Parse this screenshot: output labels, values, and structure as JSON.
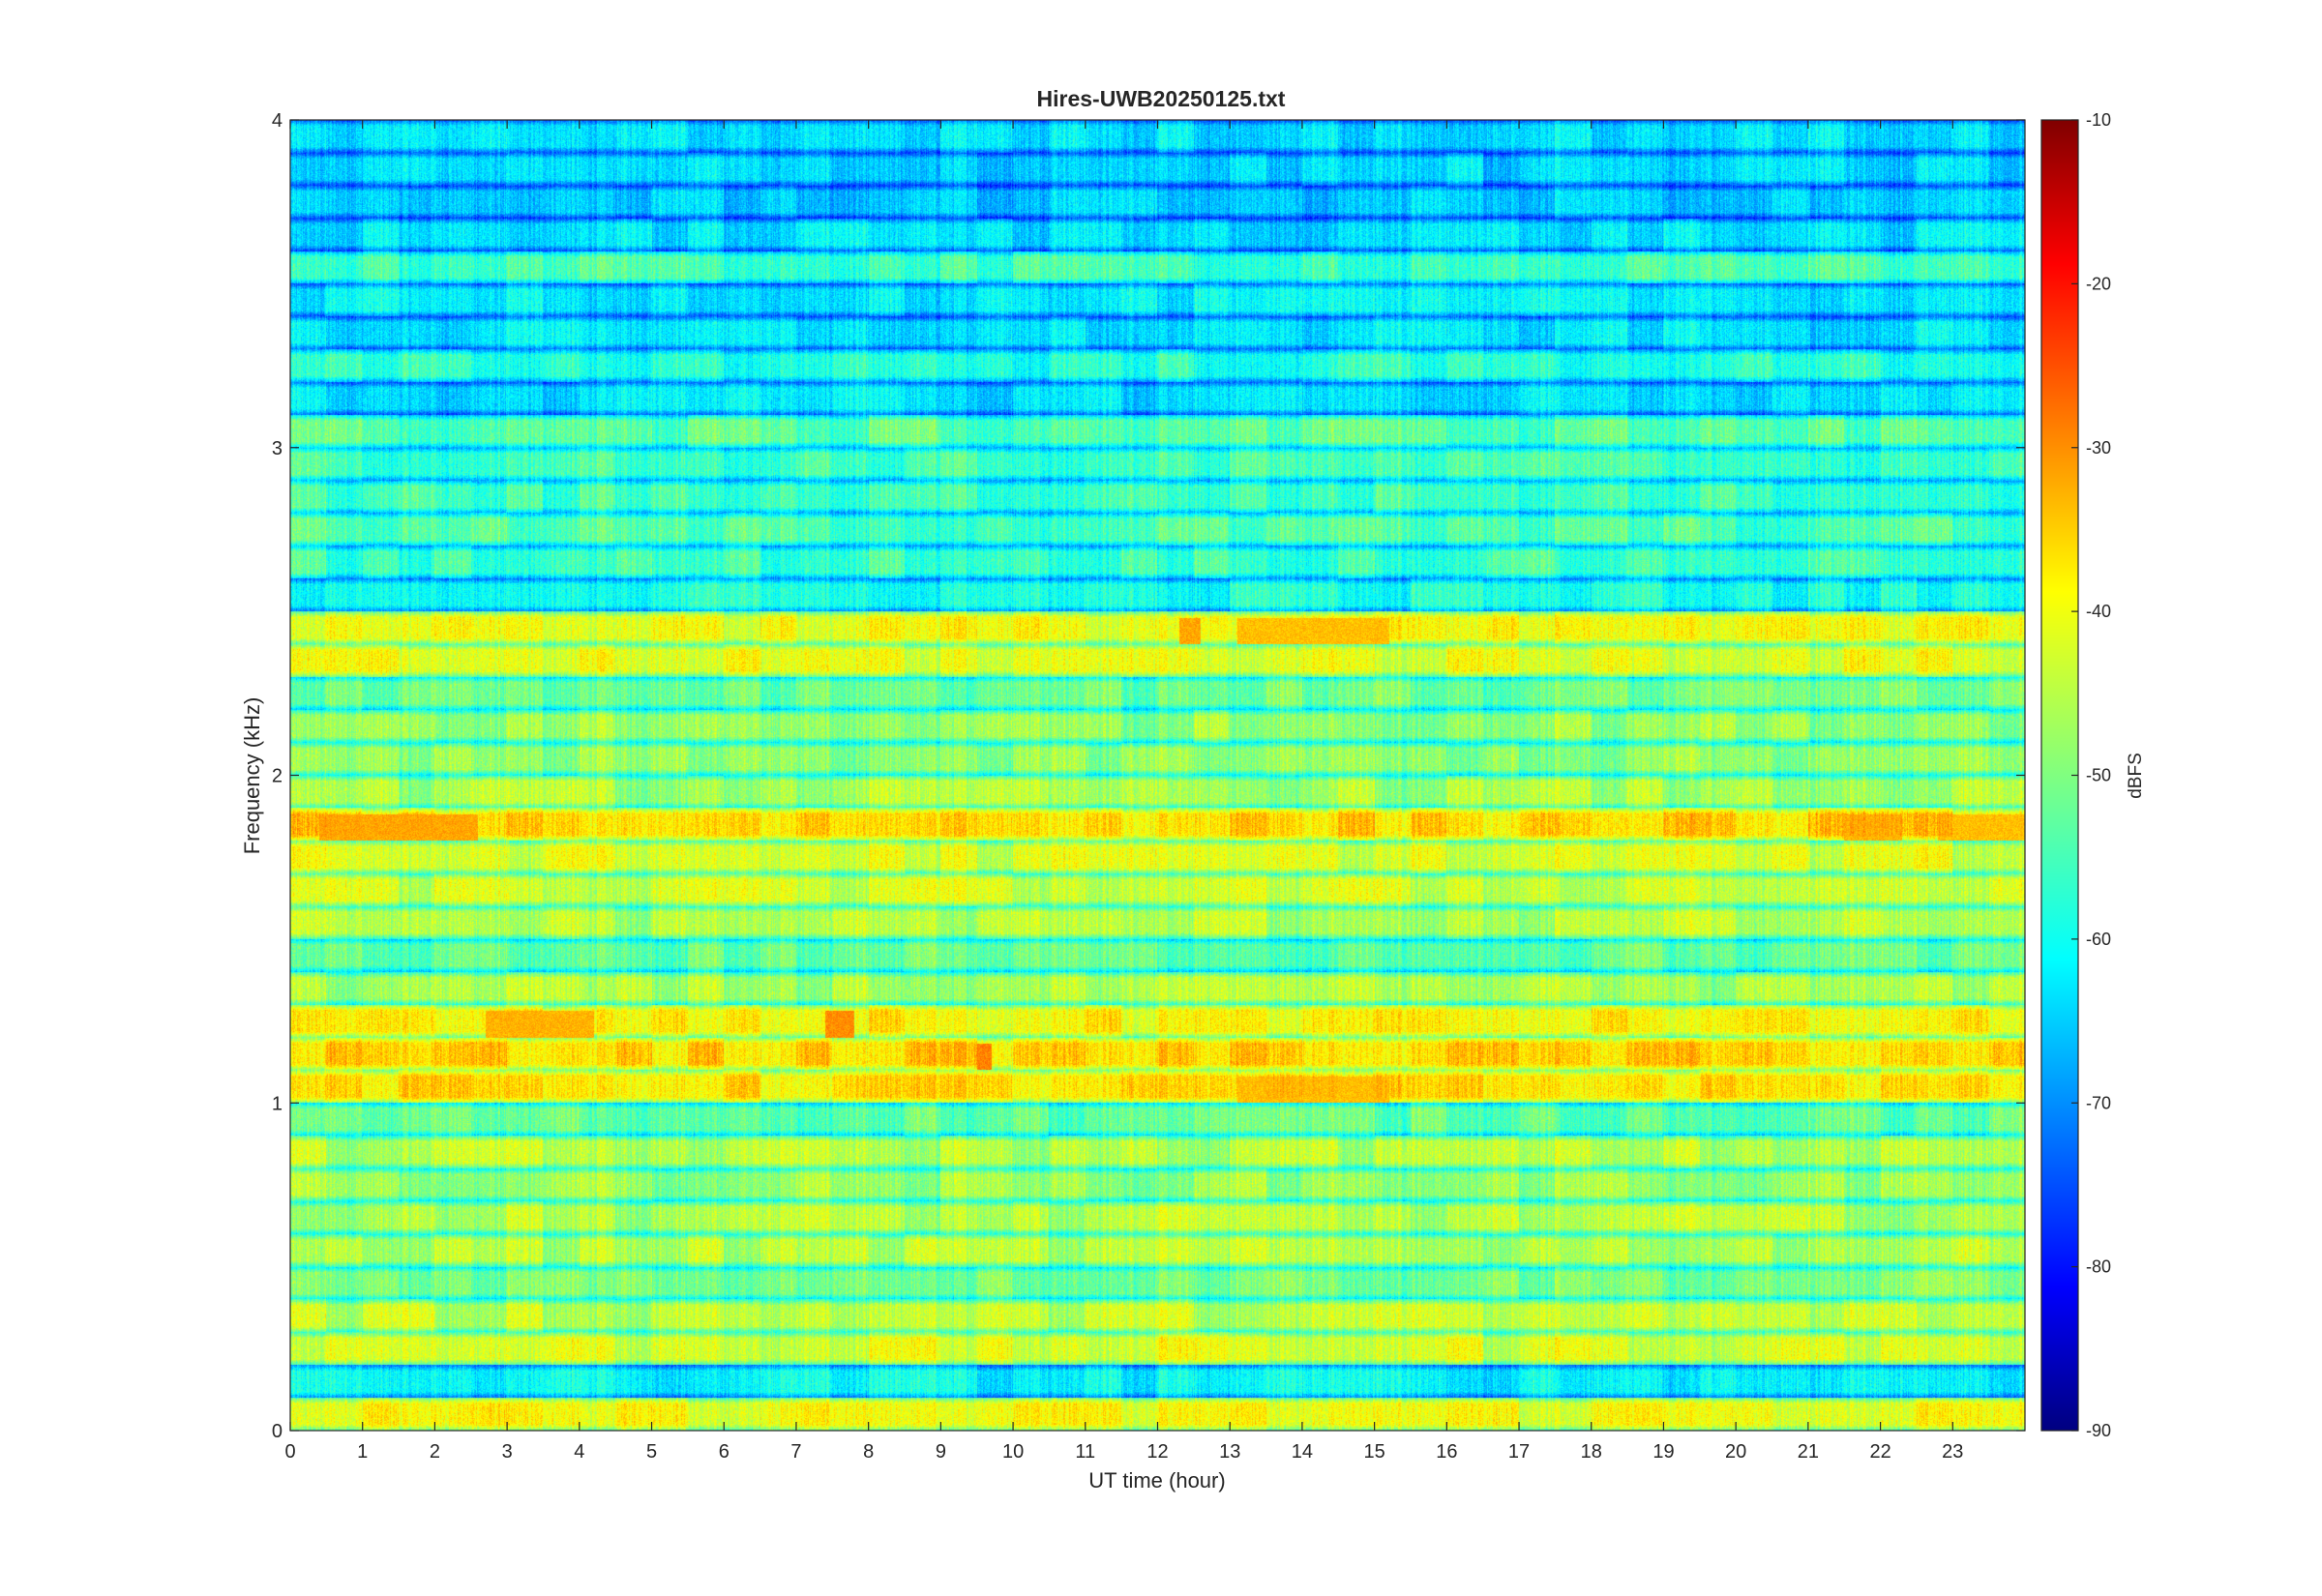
{
  "chart_data": {
    "type": "heatmap",
    "title": "Hires-UWB20250125.txt",
    "xlabel": "UT time (hour)",
    "ylabel": "Frequency (kHz)",
    "xlim": [
      0,
      24
    ],
    "ylim": [
      0,
      4
    ],
    "x_ticks": [
      "0",
      "1",
      "2",
      "3",
      "4",
      "5",
      "6",
      "7",
      "8",
      "9",
      "10",
      "11",
      "12",
      "13",
      "14",
      "15",
      "16",
      "17",
      "18",
      "19",
      "20",
      "21",
      "22",
      "23"
    ],
    "y_ticks": [
      "0",
      "1",
      "2",
      "3",
      "4"
    ],
    "colorbar": {
      "label": "dBFS",
      "range": [
        -90,
        -10
      ],
      "ticks": [
        "-10",
        "-20",
        "-30",
        "-40",
        "-50",
        "-60",
        "-70",
        "-80",
        "-90"
      ],
      "colormap": "jet"
    },
    "bands": [
      {
        "f": 0.04,
        "level": -41
      },
      {
        "f": 0.14,
        "level": -60
      },
      {
        "f": 0.24,
        "level": -43
      },
      {
        "f": 0.34,
        "level": -45
      },
      {
        "f": 0.44,
        "level": -50
      },
      {
        "f": 0.54,
        "level": -46
      },
      {
        "f": 0.64,
        "level": -46
      },
      {
        "f": 0.74,
        "level": -48
      },
      {
        "f": 0.84,
        "level": -46
      },
      {
        "f": 0.94,
        "level": -52
      },
      {
        "f": 1.04,
        "level": -38
      },
      {
        "f": 1.14,
        "level": -37
      },
      {
        "f": 1.24,
        "level": -40
      },
      {
        "f": 1.34,
        "level": -47
      },
      {
        "f": 1.44,
        "level": -52
      },
      {
        "f": 1.54,
        "level": -46
      },
      {
        "f": 1.64,
        "level": -44
      },
      {
        "f": 1.74,
        "level": -43
      },
      {
        "f": 1.84,
        "level": -37
      },
      {
        "f": 1.94,
        "level": -47
      },
      {
        "f": 2.04,
        "level": -49
      },
      {
        "f": 2.14,
        "level": -48
      },
      {
        "f": 2.24,
        "level": -51
      },
      {
        "f": 2.34,
        "level": -42
      },
      {
        "f": 2.44,
        "level": -41
      },
      {
        "f": 2.54,
        "level": -58
      },
      {
        "f": 2.64,
        "level": -55
      },
      {
        "f": 2.74,
        "level": -54
      },
      {
        "f": 2.84,
        "level": -55
      },
      {
        "f": 2.94,
        "level": -55
      },
      {
        "f": 3.04,
        "level": -53
      },
      {
        "f": 3.14,
        "level": -62
      },
      {
        "f": 3.24,
        "level": -57
      },
      {
        "f": 3.34,
        "level": -62
      },
      {
        "f": 3.44,
        "level": -61
      },
      {
        "f": 3.54,
        "level": -55
      },
      {
        "f": 3.64,
        "level": -62
      },
      {
        "f": 3.74,
        "level": -64
      },
      {
        "f": 3.84,
        "level": -63
      },
      {
        "f": 3.94,
        "level": -62
      }
    ],
    "hotspots": [
      {
        "t0": 0.4,
        "t1": 2.6,
        "f": 1.84,
        "level": -33
      },
      {
        "t0": 2.7,
        "t1": 4.2,
        "f": 1.24,
        "level": -34
      },
      {
        "t0": 7.4,
        "t1": 7.8,
        "f": 1.24,
        "level": -31
      },
      {
        "t0": 12.3,
        "t1": 12.6,
        "f": 2.44,
        "level": -33
      },
      {
        "t0": 13.1,
        "t1": 15.2,
        "f": 2.44,
        "level": -35
      },
      {
        "t0": 13.1,
        "t1": 15.2,
        "f": 1.04,
        "level": -35
      },
      {
        "t0": 9.5,
        "t1": 9.7,
        "f": 1.14,
        "level": -30
      },
      {
        "t0": 21.5,
        "t1": 22.3,
        "f": 1.84,
        "level": -34
      },
      {
        "t0": 22.8,
        "t1": 24.0,
        "f": 1.84,
        "level": -35
      }
    ]
  }
}
